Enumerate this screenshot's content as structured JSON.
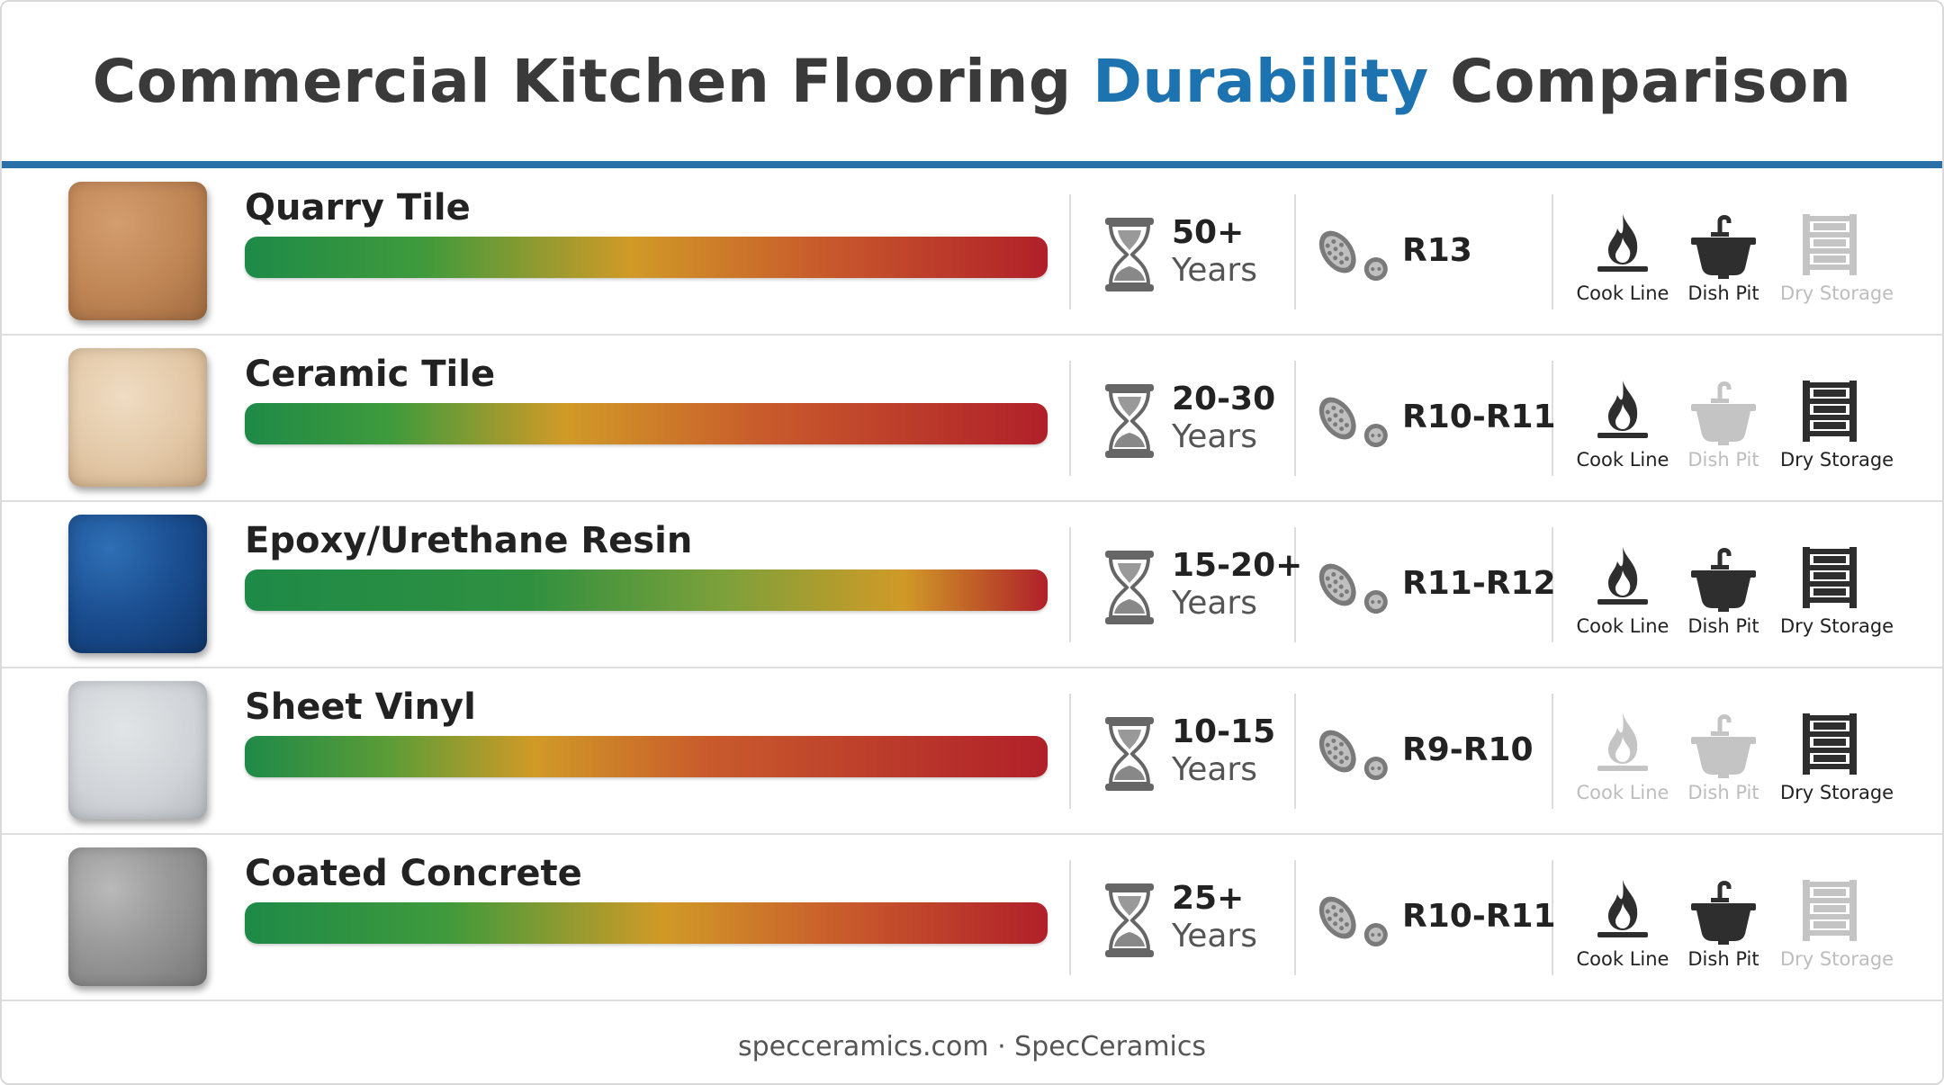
{
  "title": {
    "prefix": "Commercial Kitchen Flooring",
    "accent": "Durability",
    "suffix": "Comparison"
  },
  "colors": {
    "accent": "#1d72b0",
    "rule": "#2a6fa8",
    "bar_start": "#1e8a48",
    "bar_mid": "#d09a27",
    "bar_end": "#b0202a"
  },
  "zone_labels": [
    "Cook Line",
    "Dish Pit",
    "Dry Storage"
  ],
  "rows": [
    {
      "name": "Quarry Tile",
      "years": "50+",
      "years_unit": "Years",
      "slip": "R13",
      "zones": [
        {
          "label": "Cook Line",
          "active": true
        },
        {
          "label": "Dish Pit",
          "active": true
        },
        {
          "label": "Dry Storage",
          "active": false
        }
      ]
    },
    {
      "name": "Ceramic Tile",
      "years": "20-30",
      "years_unit": "Years",
      "slip": "R10-R11",
      "zones": [
        {
          "label": "Cook Line",
          "active": true
        },
        {
          "label": "Dish Pit",
          "active": false
        },
        {
          "label": "Dry Storage",
          "active": true
        }
      ]
    },
    {
      "name": "Epoxy/Urethane Resin",
      "years": "15-20+",
      "years_unit": "Years",
      "slip": "R11-R12",
      "zones": [
        {
          "label": "Cook Line",
          "active": true
        },
        {
          "label": "Dish Pit",
          "active": true
        },
        {
          "label": "Dry Storage",
          "active": true
        }
      ]
    },
    {
      "name": "Sheet Vinyl",
      "years": "10-15",
      "years_unit": "Years",
      "slip": "R9-R10",
      "zones": [
        {
          "label": "Cook Line",
          "active": false
        },
        {
          "label": "Dish Pit",
          "active": false
        },
        {
          "label": "Dry Storage",
          "active": true
        }
      ]
    },
    {
      "name": "Coated Concrete",
      "years": "25+",
      "years_unit": "Years",
      "slip": "R10-R11",
      "zones": [
        {
          "label": "Cook Line",
          "active": true
        },
        {
          "label": "Dish Pit",
          "active": true
        },
        {
          "label": "Dry Storage",
          "active": false
        }
      ]
    }
  ],
  "footer": "specceramics.com · SpecCeramics"
}
